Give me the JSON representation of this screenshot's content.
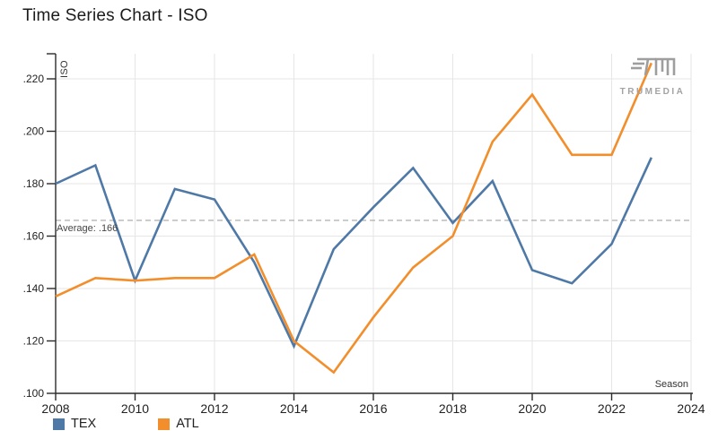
{
  "page": {
    "title": "Time Series Chart - ISO"
  },
  "branding": {
    "logo_text": "TRUMEDIA",
    "logo_color": "#9e9e9e"
  },
  "legend": [
    {
      "label": "TEX",
      "color": "#4e79a7"
    },
    {
      "label": "ATL",
      "color": "#f28e2b"
    }
  ],
  "chart_data": {
    "type": "line",
    "title": "Time Series Chart - ISO",
    "xlabel": "Season",
    "ylabel": "ISO",
    "x": [
      2008,
      2009,
      2010,
      2011,
      2012,
      2013,
      2014,
      2015,
      2016,
      2017,
      2018,
      2019,
      2020,
      2021,
      2022,
      2023
    ],
    "series": [
      {
        "name": "TEX",
        "color": "#4e79a7",
        "values": [
          0.18,
          0.187,
          0.143,
          0.178,
          0.174,
          0.15,
          0.118,
          0.155,
          0.171,
          0.186,
          0.165,
          0.181,
          0.147,
          0.142,
          0.157,
          0.19
        ]
      },
      {
        "name": "ATL",
        "color": "#f28e2b",
        "values": [
          0.137,
          0.144,
          0.143,
          0.144,
          0.144,
          0.153,
          0.12,
          0.108,
          0.129,
          0.148,
          0.16,
          0.196,
          0.214,
          0.191,
          0.191,
          0.226
        ]
      }
    ],
    "average_line": {
      "value": 0.166,
      "label": "Average: .166",
      "style": "dashed",
      "color": "#b5b5b5"
    },
    "x_ticks": [
      2008,
      2010,
      2012,
      2014,
      2016,
      2018,
      2020,
      2022,
      2024
    ],
    "y_ticks": [
      {
        "value": 0.1,
        "label": ".100"
      },
      {
        "value": 0.12,
        "label": ".120"
      },
      {
        "value": 0.14,
        "label": ".140"
      },
      {
        "value": 0.16,
        "label": ".160"
      },
      {
        "value": 0.18,
        "label": ".180"
      },
      {
        "value": 0.2,
        "label": ".200"
      },
      {
        "value": 0.22,
        "label": ".220"
      }
    ],
    "xlim": [
      2008,
      2024
    ],
    "ylim": [
      0.1,
      0.23
    ],
    "grid": true,
    "legend_position": "bottom-left",
    "axis_color": "#2b2b2b",
    "grid_color": "#e6e6e6",
    "tick_label_color": "#222222"
  }
}
